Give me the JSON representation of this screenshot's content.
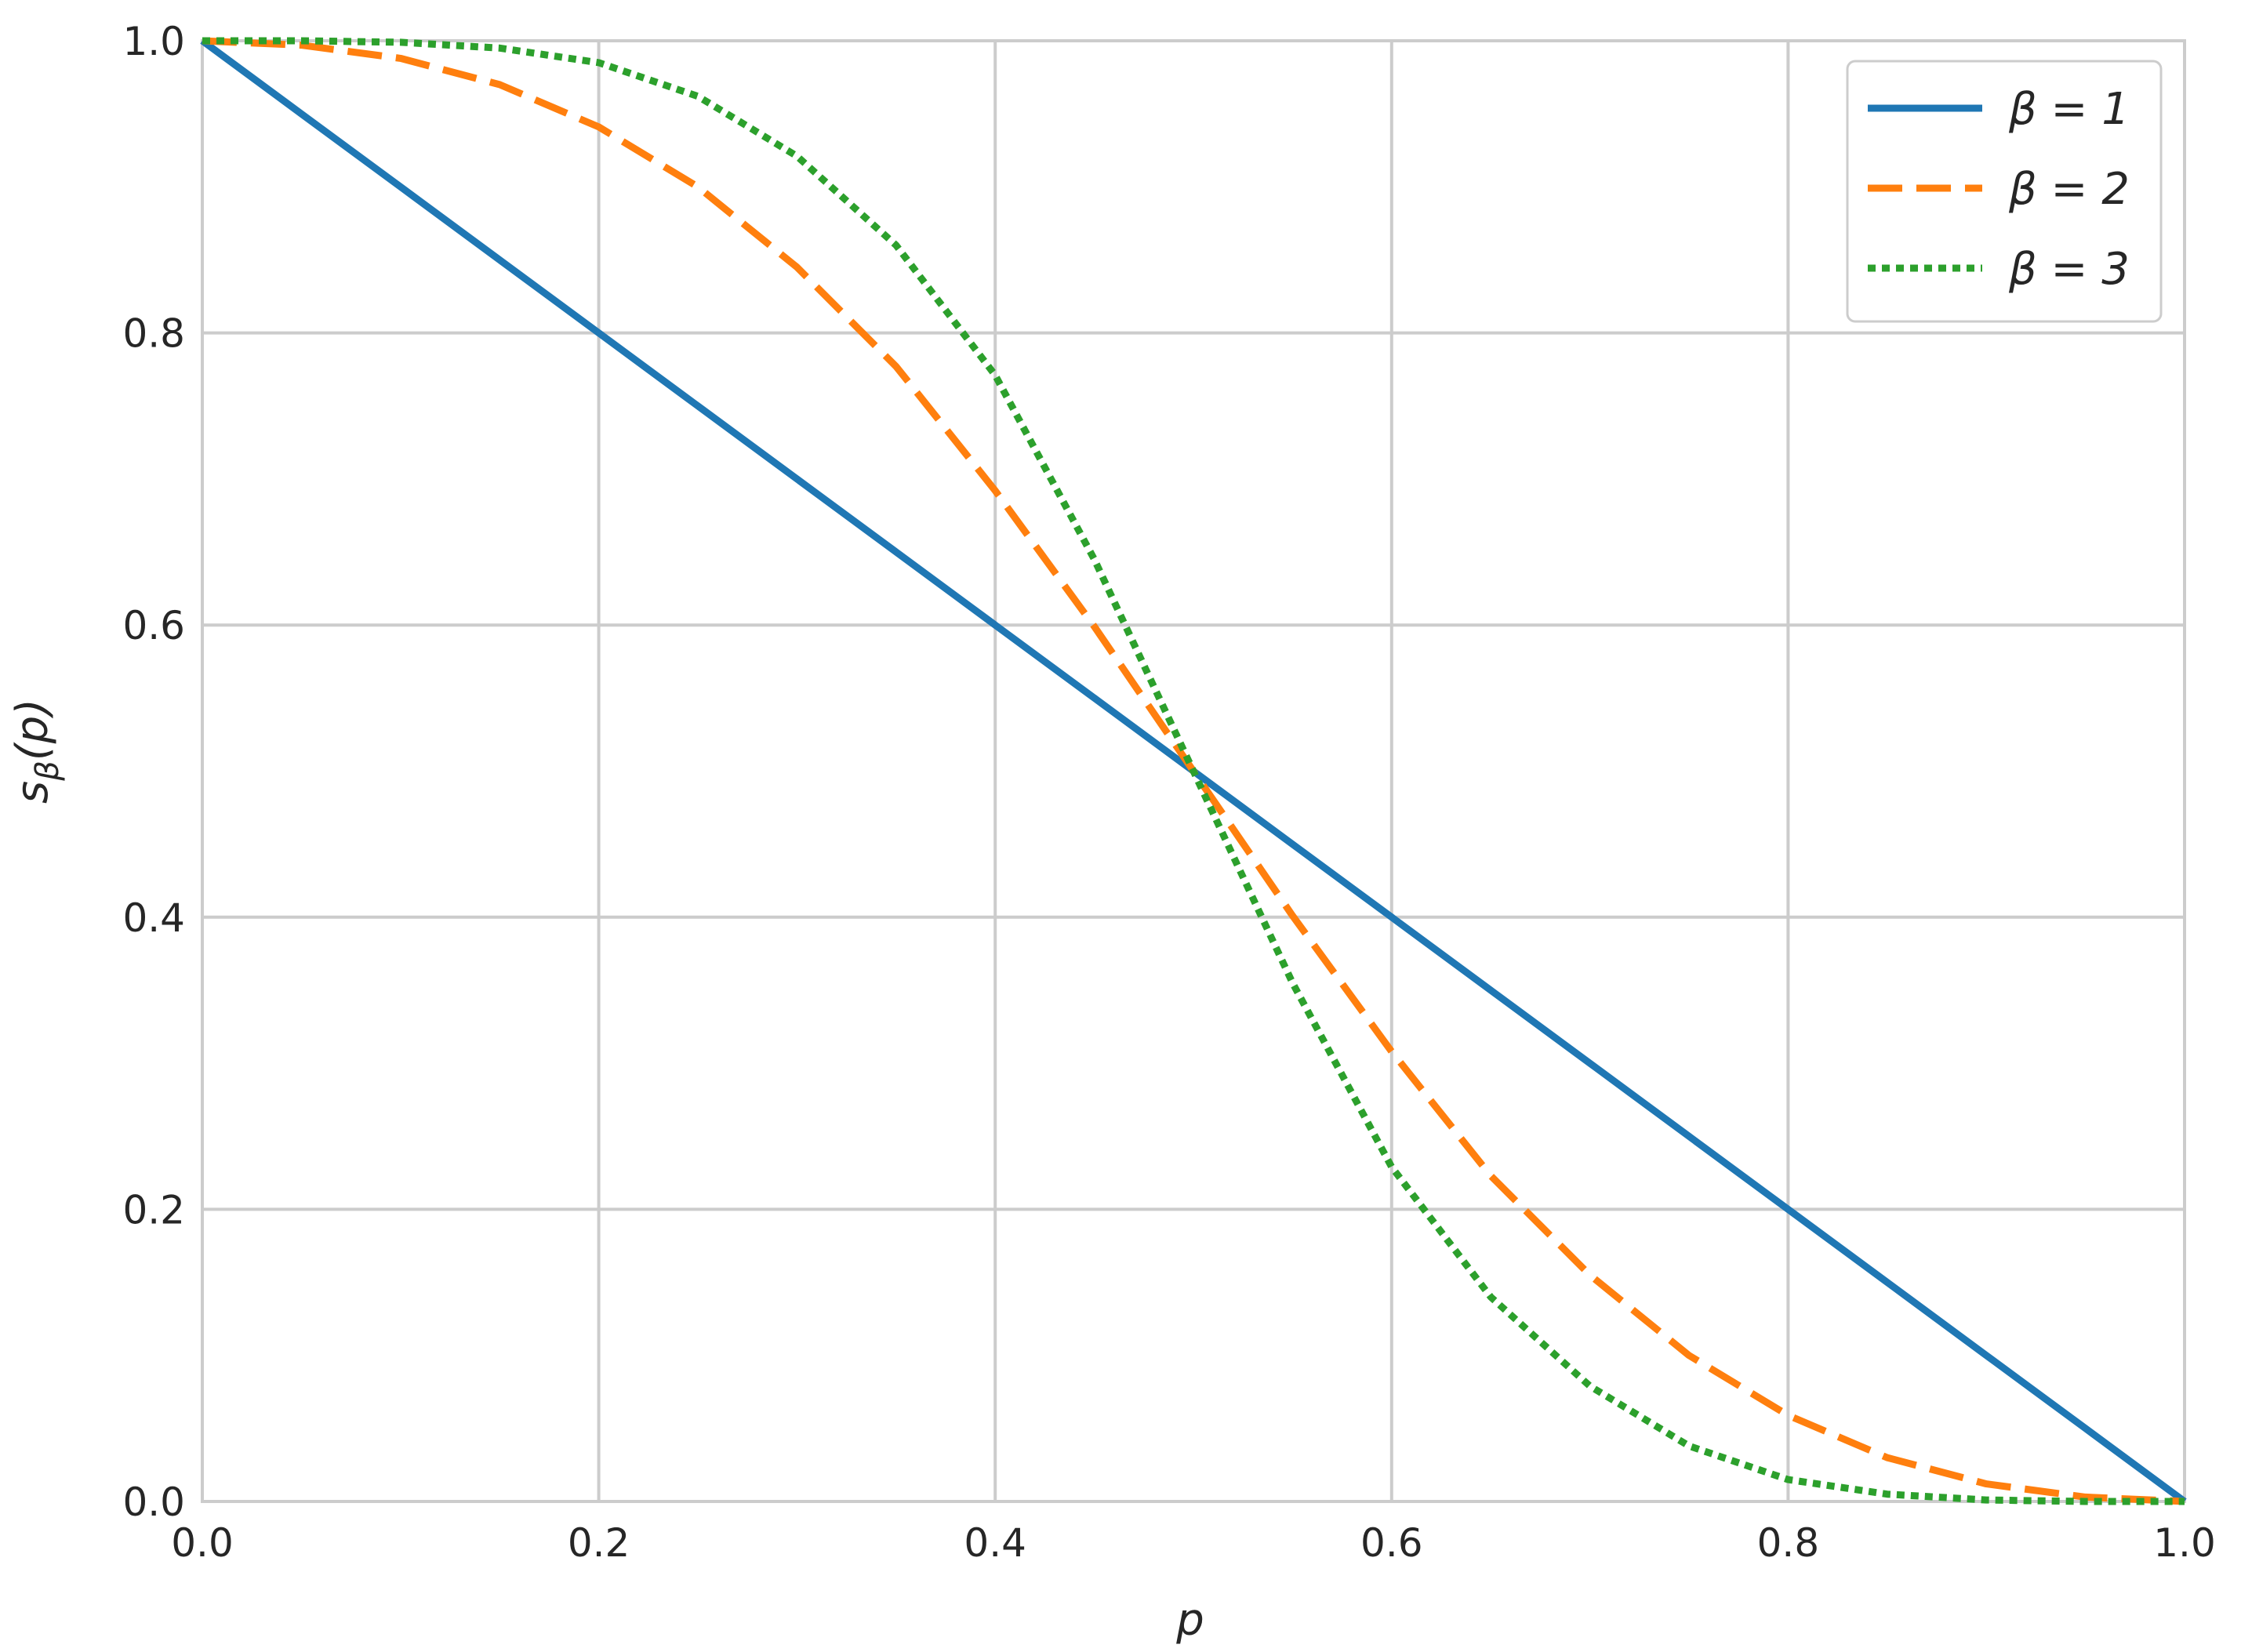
{
  "chart_data": {
    "type": "line",
    "title": "",
    "xlabel": "p",
    "ylabel": "s",
    "ylabel_subscript": "β",
    "ylabel_suffix": "(p)",
    "xlim": [
      0.0,
      1.0
    ],
    "ylim": [
      0.0,
      1.0
    ],
    "xticks": [
      0.0,
      0.2,
      0.4,
      0.6,
      0.8,
      1.0
    ],
    "yticks": [
      0.0,
      0.2,
      0.4,
      0.6,
      0.8,
      1.0
    ],
    "xtick_labels": [
      "0.0",
      "0.2",
      "0.4",
      "0.6",
      "0.8",
      "1.0"
    ],
    "ytick_labels": [
      "0.0",
      "0.2",
      "0.4",
      "0.6",
      "0.8",
      "1.0"
    ],
    "grid": true,
    "legend_position": "top-right",
    "x": [
      0.0,
      0.05,
      0.1,
      0.15,
      0.2,
      0.25,
      0.3,
      0.35,
      0.4,
      0.45,
      0.5,
      0.55,
      0.6,
      0.65,
      0.7,
      0.75,
      0.8,
      0.85,
      0.9,
      0.95,
      1.0
    ],
    "series": [
      {
        "name": "β = 1",
        "color": "#1f77b4",
        "style": "solid",
        "values": [
          1.0,
          0.95,
          0.9,
          0.85,
          0.8,
          0.75,
          0.7,
          0.65,
          0.6,
          0.55,
          0.5,
          0.45,
          0.4,
          0.35,
          0.3,
          0.25,
          0.2,
          0.15,
          0.1,
          0.05,
          0.0
        ]
      },
      {
        "name": "β = 2",
        "color": "#ff7f0e",
        "style": "dashed",
        "values": [
          1.0,
          0.997,
          0.988,
          0.97,
          0.941,
          0.9,
          0.845,
          0.777,
          0.692,
          0.599,
          0.5,
          0.401,
          0.308,
          0.223,
          0.155,
          0.1,
          0.059,
          0.03,
          0.012,
          0.003,
          0.0
        ]
      },
      {
        "name": "β = 3",
        "color": "#2ca02c",
        "style": "dotted",
        "values": [
          1.0,
          1.0,
          0.999,
          0.995,
          0.985,
          0.962,
          0.921,
          0.86,
          0.771,
          0.645,
          0.5,
          0.355,
          0.229,
          0.14,
          0.079,
          0.038,
          0.015,
          0.005,
          0.001,
          0.0,
          0.0
        ]
      }
    ]
  },
  "colors": {
    "grid": "#cccccc",
    "text": "#262626",
    "background": "#ffffff"
  }
}
